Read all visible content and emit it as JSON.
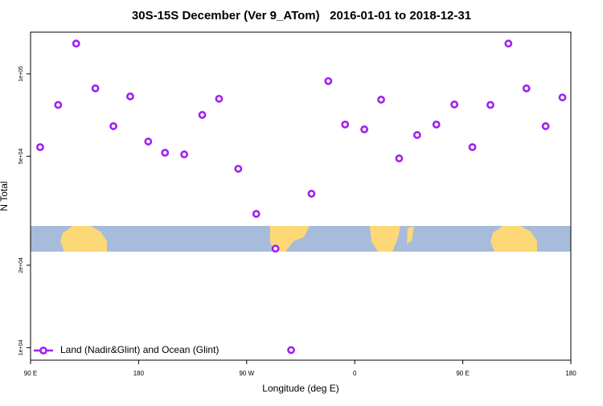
{
  "chart_data": {
    "type": "scatter",
    "title": "30S-15S December (Ver 9_ATom)   2016-01-01 to 2018-12-31",
    "x_label": "Longitude (deg E)",
    "y_label": "N Total",
    "log_y": true,
    "legend": "bottomleft",
    "xlim": [
      90,
      540
    ],
    "xticks": [
      {
        "value": 90,
        "label": "90 E"
      },
      {
        "value": 180,
        "label": "180"
      },
      {
        "value": 270,
        "label": "90 W"
      },
      {
        "value": 360,
        "label": "0"
      },
      {
        "value": 450,
        "label": "90 E"
      },
      {
        "value": 540,
        "label": "180"
      }
    ],
    "ylim": [
      9000,
      142000
    ],
    "yticks": [
      {
        "value": 10000,
        "label": "1e+04"
      },
      {
        "value": 20000,
        "label": "2e+04"
      },
      {
        "value": 50000,
        "label": "5e+04"
      },
      {
        "value": 100000,
        "label": "1e+05"
      }
    ],
    "series": [
      {
        "name": "Land (Nadir&Glint) and Ocean (Glint)",
        "color": "#a020f0",
        "x": [
          98,
          113,
          128,
          144,
          159,
          173,
          188,
          202,
          218,
          233,
          247,
          263,
          278,
          294,
          307,
          324,
          338,
          352,
          368,
          382,
          397,
          412,
          428,
          443,
          458,
          473,
          488,
          503,
          519,
          533
        ],
        "values": [
          54000,
          77000,
          129000,
          88500,
          64400,
          82700,
          56600,
          51500,
          50800,
          70800,
          81100,
          45000,
          30800,
          23000,
          9800,
          36500,
          94100,
          65300,
          62700,
          80500,
          49100,
          59800,
          65300,
          77300,
          54000,
          77000,
          129000,
          88500,
          64400,
          82000
        ]
      }
    ]
  }
}
